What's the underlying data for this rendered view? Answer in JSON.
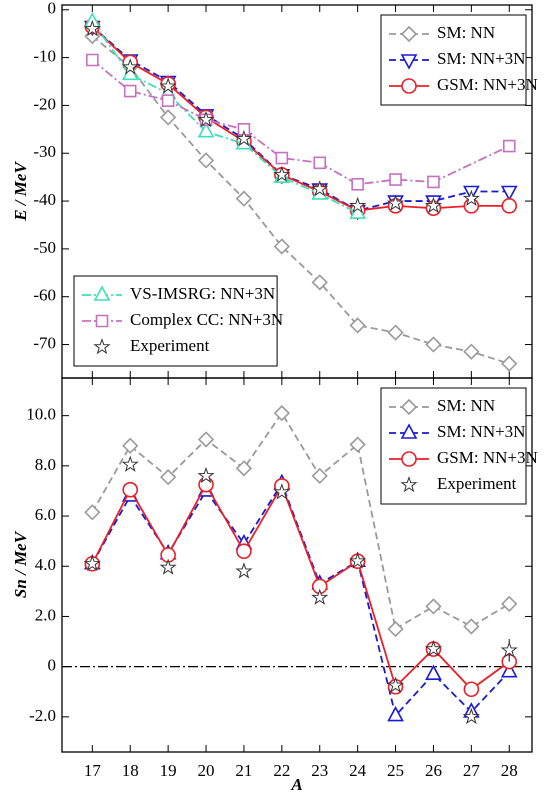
{
  "chart_data": [
    {
      "type": "line",
      "ylabel": "E / MeV",
      "x": [
        17,
        18,
        19,
        20,
        21,
        22,
        23,
        24,
        25,
        26,
        27,
        28
      ],
      "xlim": [
        16.2,
        28.6
      ],
      "xticks": [
        17,
        18,
        19,
        20,
        21,
        22,
        23,
        24,
        25,
        26,
        27,
        28
      ],
      "xticklabels": false,
      "ylim": [
        -77,
        1
      ],
      "yticks": [
        0,
        -10,
        -20,
        -30,
        -40,
        -50,
        -60,
        -70
      ],
      "series": [
        {
          "name": "SM: NN",
          "color": "#9a9a9a",
          "marker": "diamond",
          "linestyle": "dashed",
          "legend": "upper right",
          "values": [
            -5.5,
            -12,
            -22.5,
            -31.5,
            -39.5,
            -49.5,
            -57,
            -66,
            -67.5,
            -70,
            -71.5,
            -74
          ]
        },
        {
          "name": "SM: NN+3N",
          "color": "#1a1ad0",
          "marker": "tri-down",
          "linestyle": "dashed",
          "legend": "upper right",
          "values": [
            -3.5,
            -10.5,
            -15,
            -22,
            -27,
            -34.5,
            -37.5,
            -42,
            -40,
            -40,
            -38,
            -38
          ]
        },
        {
          "name": "GSM: NN+3N",
          "color": "#e8202a",
          "marker": "circle",
          "linestyle": "solid",
          "legend": "upper right",
          "values": [
            -3.5,
            -11,
            -15.5,
            -22.5,
            -27.5,
            -34.5,
            -38,
            -42,
            -41,
            -41.5,
            -41,
            -41
          ]
        },
        {
          "name": "VS-IMSRG: NN+3N",
          "color": "#3ee0b8",
          "marker": "tri-up",
          "linestyle": "dashdot",
          "legend": "lower left",
          "x": [
            17,
            18,
            19,
            20,
            21,
            22,
            23,
            24
          ],
          "values": [
            -2.5,
            -13.5,
            -17.5,
            -25.5,
            -28,
            -35,
            -38.5,
            -42.5
          ]
        },
        {
          "name": "Complex CC: NN+3N",
          "color": "#c870c0",
          "marker": "square",
          "linestyle": "dashdot",
          "legend": "lower left",
          "x": [
            17,
            18,
            19,
            20,
            21,
            22,
            23,
            24,
            25,
            26,
            28
          ],
          "values": [
            -10.5,
            -17,
            -19,
            -23,
            -25,
            -31,
            -32,
            -36.5,
            -35.5,
            -36,
            -28.5
          ]
        },
        {
          "name": "Experiment",
          "color": "#333333",
          "marker": "star",
          "linestyle": "none",
          "legend": "lower left",
          "x": [
            17,
            18,
            19,
            20,
            21,
            22,
            23,
            24,
            25,
            26,
            27
          ],
          "values": [
            -4,
            -12,
            -16,
            -23,
            -27,
            -34.5,
            -37.5,
            -41,
            -40.5,
            -41,
            -39.5
          ]
        }
      ]
    },
    {
      "type": "line",
      "ylabel": "Sn / MeV",
      "xlabel": "A",
      "x": [
        17,
        18,
        19,
        20,
        21,
        22,
        23,
        24,
        25,
        26,
        27,
        28
      ],
      "xlim": [
        16.2,
        28.6
      ],
      "xticks": [
        17,
        18,
        19,
        20,
        21,
        22,
        23,
        24,
        25,
        26,
        27,
        28
      ],
      "ylim": [
        -3.4,
        11.5
      ],
      "yticks": [
        {
          "value": -2,
          "label": "-2.0"
        },
        0,
        {
          "value": 2,
          "label": "2.0"
        },
        {
          "value": 4,
          "label": "4.0"
        },
        {
          "value": 6,
          "label": "6.0"
        },
        {
          "value": 8,
          "label": "8.0"
        },
        {
          "value": 10,
          "label": "10.0"
        }
      ],
      "hline": 0,
      "series": [
        {
          "name": "SM: NN",
          "color": "#9a9a9a",
          "marker": "diamond",
          "linestyle": "dashed",
          "legend": "upper right",
          "values": [
            6.15,
            8.8,
            7.55,
            9.05,
            7.9,
            10.1,
            7.6,
            8.85,
            1.5,
            2.4,
            1.6,
            2.5
          ]
        },
        {
          "name": "SM: NN+3N",
          "color": "#1a1ad0",
          "marker": "tri-up",
          "linestyle": "dashed",
          "legend": "upper right",
          "values": [
            4.1,
            6.8,
            4.5,
            7.0,
            4.9,
            7.3,
            3.3,
            4.2,
            -1.95,
            -0.3,
            -1.8,
            -0.2
          ]
        },
        {
          "name": "GSM: NN+3N",
          "color": "#e8202a",
          "marker": "circle",
          "linestyle": "solid",
          "legend": "upper right",
          "values": [
            4.1,
            7.05,
            4.45,
            7.25,
            4.6,
            7.2,
            3.2,
            4.2,
            -0.8,
            0.7,
            -0.9,
            0.2
          ]
        },
        {
          "name": "Experiment",
          "color": "#333333",
          "marker": "star",
          "linestyle": "none",
          "legend": "upper right",
          "values": [
            4.1,
            8.05,
            3.95,
            7.6,
            3.8,
            6.95,
            2.75,
            4.2,
            -0.75,
            0.7,
            -2.0,
            0.65
          ],
          "errors": [
            null,
            null,
            null,
            null,
            null,
            null,
            null,
            null,
            null,
            null,
            null,
            0.45
          ]
        }
      ]
    }
  ]
}
